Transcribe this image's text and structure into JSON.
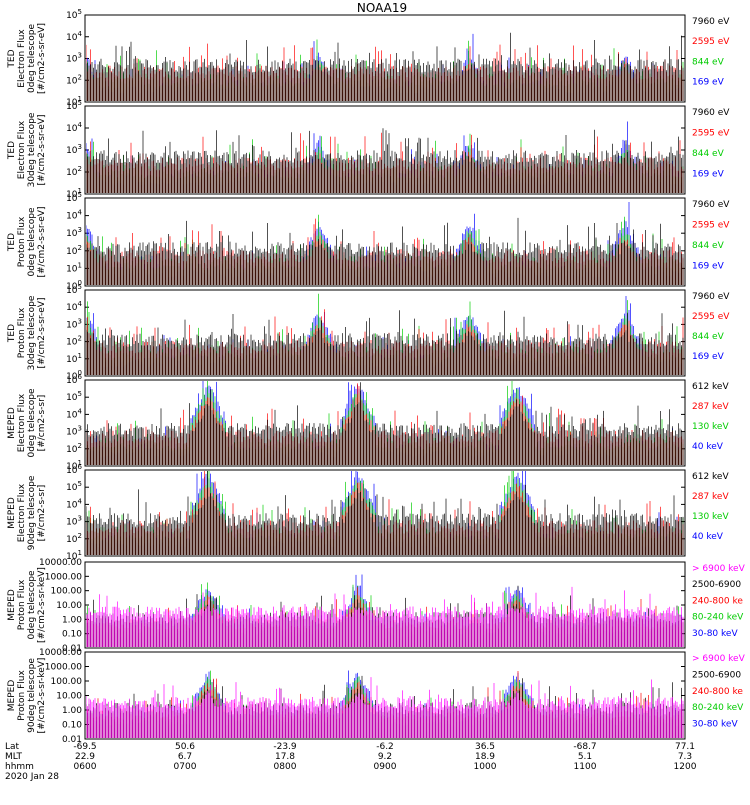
{
  "title": "NOAA19",
  "date_label": "2020 Jan 28",
  "axis_row_labels": [
    "Lat",
    "MLT",
    "hhmm"
  ],
  "x_axis": {
    "lat": [
      "-69.5",
      "50.6",
      "-23.9",
      "-6.2",
      "36.5",
      "-68.7",
      "77.1"
    ],
    "mlt": [
      "22.9",
      "6.7",
      "17.8",
      "9.2",
      "18.9",
      "5.1",
      "7.3"
    ],
    "hhmm": [
      "0600",
      "0700",
      "0800",
      "0900",
      "1000",
      "1100",
      "1200"
    ]
  },
  "colors": {
    "black": "#000000",
    "red": "#ff0000",
    "green": "#00cc00",
    "blue": "#0000ff",
    "magenta": "#ff00ff"
  },
  "chart_data": [
    {
      "type": "line",
      "panel": "TED Electron Flux 0deg telescope",
      "ylabel": [
        "TED",
        "Electron Flux",
        "0deg telescope",
        "[#/cm2-s-sr-eV]"
      ],
      "yticks": [
        "10^1",
        "10^2",
        "10^3",
        "10^4",
        "10^5"
      ],
      "ylim_log": [
        0,
        5
      ],
      "legend": [
        {
          "label": "7960 eV",
          "color": "#000000"
        },
        {
          "label": "2595 eV",
          "color": "#ff0000"
        },
        {
          "label": "844 eV",
          "color": "#00cc00"
        },
        {
          "label": "169 eV",
          "color": "#0000ff"
        }
      ],
      "passes": [
        0.0,
        0.39,
        0.64,
        0.9
      ],
      "peak_log": 2.5
    },
    {
      "type": "line",
      "panel": "TED Electron Flux 30deg telescope",
      "ylabel": [
        "TED",
        "Electron Flux",
        "30deg telescope",
        "[#/cm2-s-sr-eV]"
      ],
      "yticks": [
        "10^1",
        "10^2",
        "10^3",
        "10^4",
        "10^5"
      ],
      "ylim_log": [
        0,
        5
      ],
      "legend": [
        {
          "label": "7960 eV",
          "color": "#000000"
        },
        {
          "label": "2595 eV",
          "color": "#ff0000"
        },
        {
          "label": "844 eV",
          "color": "#00cc00"
        },
        {
          "label": "169 eV",
          "color": "#0000ff"
        }
      ],
      "passes": [
        0.0,
        0.39,
        0.64,
        0.9
      ],
      "peak_log": 2.7
    },
    {
      "type": "line",
      "panel": "TED Proton Flux 0deg telescope",
      "ylabel": [
        "TED",
        "Proton Flux",
        "0deg telescope",
        "[#/cm2-s-sr-eV]"
      ],
      "yticks": [
        "10^0",
        "10^1",
        "10^2",
        "10^3",
        "10^4",
        "10^5"
      ],
      "ylim_log": [
        0,
        5
      ],
      "legend": [
        {
          "label": "7960 eV",
          "color": "#000000"
        },
        {
          "label": "2595 eV",
          "color": "#ff0000"
        },
        {
          "label": "844 eV",
          "color": "#00cc00"
        },
        {
          "label": "169 eV",
          "color": "#0000ff"
        }
      ],
      "passes": [
        0.0,
        0.39,
        0.64,
        0.9
      ],
      "peak_log": 3.3
    },
    {
      "type": "line",
      "panel": "TED Proton Flux 30deg telescope",
      "ylabel": [
        "TED",
        "Proton Flux",
        "30deg telescope",
        "[#/cm2-s-sr-eV]"
      ],
      "yticks": [
        "10^0",
        "10^1",
        "10^2",
        "10^3",
        "10^4",
        "10^5"
      ],
      "ylim_log": [
        0,
        5
      ],
      "legend": [
        {
          "label": "7960 eV",
          "color": "#000000"
        },
        {
          "label": "2595 eV",
          "color": "#ff0000"
        },
        {
          "label": "844 eV",
          "color": "#00cc00"
        },
        {
          "label": "169 eV",
          "color": "#0000ff"
        }
      ],
      "passes": [
        0.0,
        0.39,
        0.64,
        0.9
      ],
      "peak_log": 3.5
    },
    {
      "type": "line",
      "panel": "MEPED Electron Flux 0deg telescope",
      "ylabel": [
        "MEPED",
        "Electron Flux",
        "0deg telescope",
        "[#/cm2-s-sr]"
      ],
      "yticks": [
        "10^1",
        "10^2",
        "10^3",
        "10^4",
        "10^5",
        "10^6"
      ],
      "ylim_log": [
        1,
        6
      ],
      "legend": [
        {
          "label": "612 keV",
          "color": "#000000"
        },
        {
          "label": "287 keV",
          "color": "#ff0000"
        },
        {
          "label": "130 keV",
          "color": "#00cc00"
        },
        {
          "label": "40 keV",
          "color": "#0000ff"
        }
      ],
      "passes": [
        0.205,
        0.455,
        0.72
      ],
      "peak_log": 5.5
    },
    {
      "type": "line",
      "panel": "MEPED Electron Flux 90deg telescope",
      "ylabel": [
        "MEPED",
        "Electron Flux",
        "90deg telescope",
        "[#/cm2-s-sr]"
      ],
      "yticks": [
        "10^1",
        "10^2",
        "10^3",
        "10^4",
        "10^5",
        "10^6"
      ],
      "ylim_log": [
        1,
        6
      ],
      "legend": [
        {
          "label": "612 keV",
          "color": "#000000"
        },
        {
          "label": "287 keV",
          "color": "#ff0000"
        },
        {
          "label": "130 keV",
          "color": "#00cc00"
        },
        {
          "label": "40 keV",
          "color": "#0000ff"
        }
      ],
      "passes": [
        0.205,
        0.455,
        0.72
      ],
      "peak_log": 5.6
    },
    {
      "type": "line",
      "panel": "MEPED Proton Flux 0deg telescope",
      "ylabel": [
        "MEPED",
        "Proton Flux",
        "0deg telescope",
        "[#/cm2-s-sr-keV]"
      ],
      "yticks": [
        "0.01",
        "0.10",
        "1.00",
        "10.00",
        "100.00",
        "1000.00",
        "10000.00"
      ],
      "ylim_log": [
        -2,
        4
      ],
      "legend": [
        {
          "label": "> 6900 keV",
          "color": "#ff00ff"
        },
        {
          "label": "2500-6900",
          "color": "#000000"
        },
        {
          "label": "240-800 ke",
          "color": "#ff0000"
        },
        {
          "label": "80-240 keV",
          "color": "#00cc00"
        },
        {
          "label": "30-80 keV",
          "color": "#0000ff"
        }
      ],
      "passes": [
        0.205,
        0.455,
        0.72
      ],
      "peak_log": 2.0
    },
    {
      "type": "line",
      "panel": "MEPED Proton Flux 90deg telescope",
      "ylabel": [
        "MEPED",
        "Proton Flux",
        "90deg telescope",
        "[#/cm2-s-sr-keV]"
      ],
      "yticks": [
        "0.01",
        "0.10",
        "1.00",
        "10.00",
        "100.00",
        "1000.00",
        "10000.00"
      ],
      "ylim_log": [
        -2,
        4
      ],
      "legend": [
        {
          "label": "> 6900 keV",
          "color": "#ff00ff"
        },
        {
          "label": "2500-6900",
          "color": "#000000"
        },
        {
          "label": "240-800 ke",
          "color": "#ff0000"
        },
        {
          "label": "80-240 keV",
          "color": "#00cc00"
        },
        {
          "label": "30-80 keV",
          "color": "#0000ff"
        }
      ],
      "passes": [
        0.205,
        0.455,
        0.72
      ],
      "peak_log": 2.3
    }
  ]
}
